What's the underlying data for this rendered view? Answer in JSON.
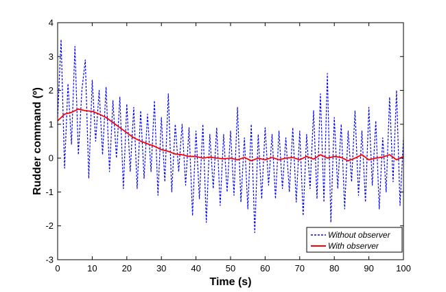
{
  "chart_data": {
    "type": "line",
    "title": "",
    "xlabel": "Time (s)",
    "ylabel": "Rudder command (º)",
    "xlim": [
      0,
      100
    ],
    "ylim": [
      -3,
      4
    ],
    "xticks": [
      "0",
      "10",
      "20",
      "30",
      "40",
      "50",
      "60",
      "70",
      "80",
      "90",
      "100"
    ],
    "yticks": [
      "4",
      "3",
      "2",
      "1",
      "0",
      "-1",
      "-2",
      "-3"
    ],
    "grid": false,
    "legend_position": "bottom-right",
    "series": [
      {
        "name": "Without observer",
        "color": "#0000ff",
        "style": "dashed",
        "x": [
          0,
          1,
          2,
          3,
          4,
          5,
          6,
          7,
          8,
          9,
          10,
          11,
          12,
          13,
          14,
          15,
          16,
          17,
          18,
          19,
          20,
          21,
          22,
          23,
          24,
          25,
          26,
          27,
          28,
          29,
          30,
          31,
          32,
          33,
          34,
          35,
          36,
          37,
          38,
          39,
          40,
          41,
          42,
          43,
          44,
          45,
          46,
          47,
          48,
          49,
          50,
          51,
          52,
          53,
          54,
          55,
          56,
          57,
          58,
          59,
          60,
          61,
          62,
          63,
          64,
          65,
          66,
          67,
          68,
          69,
          70,
          71,
          72,
          73,
          74,
          75,
          76,
          77,
          78,
          79,
          80,
          81,
          82,
          83,
          84,
          85,
          86,
          87,
          88,
          89,
          90,
          91,
          92,
          93,
          94,
          95,
          96,
          97,
          98,
          99,
          100
        ],
        "y": [
          1.2,
          3.5,
          -0.3,
          2.2,
          0.4,
          3.3,
          0.1,
          2.0,
          2.9,
          -0.6,
          2.3,
          0.5,
          2.0,
          0.1,
          2.1,
          -0.4,
          1.7,
          0.0,
          1.8,
          -0.9,
          1.6,
          -0.4,
          1.5,
          -0.9,
          1.4,
          -0.6,
          1.3,
          -0.4,
          1.7,
          -1.1,
          1.2,
          -0.7,
          1.9,
          -1.0,
          1.0,
          -0.4,
          1.0,
          -0.8,
          0.9,
          -1.7,
          0.8,
          -1.2,
          1.0,
          -1.9,
          0.7,
          -0.9,
          0.9,
          -1.4,
          0.7,
          -1.0,
          0.8,
          -1.1,
          1.5,
          -1.3,
          0.6,
          -1.5,
          1.0,
          -2.2,
          0.7,
          -1.2,
          0.9,
          -0.8,
          0.7,
          -1.2,
          0.8,
          -0.9,
          0.6,
          -1.0,
          0.9,
          -1.3,
          0.8,
          -1.7,
          0.7,
          -0.9,
          1.4,
          -1.2,
          1.9,
          -1.3,
          2.5,
          -1.9,
          1.2,
          -0.9,
          1.0,
          -1.5,
          0.8,
          -0.7,
          1.4,
          -1.1,
          0.8,
          -1.3,
          1.5,
          -0.8,
          1.1,
          -1.5,
          0.6,
          -1.0,
          1.8,
          -0.7,
          2.0,
          -1.4,
          0.6
        ]
      },
      {
        "name": "With observer",
        "color": "#ff0000",
        "style": "solid",
        "x": [
          0,
          2,
          4,
          6,
          8,
          10,
          12,
          14,
          16,
          18,
          20,
          22,
          24,
          26,
          28,
          30,
          32,
          34,
          36,
          38,
          40,
          42,
          44,
          46,
          48,
          50,
          52,
          54,
          56,
          58,
          60,
          62,
          64,
          66,
          68,
          70,
          72,
          74,
          76,
          78,
          80,
          82,
          84,
          86,
          88,
          90,
          92,
          94,
          96,
          98,
          100
        ],
        "y": [
          1.1,
          1.3,
          1.35,
          1.45,
          1.4,
          1.38,
          1.3,
          1.2,
          1.05,
          0.9,
          0.75,
          0.6,
          0.5,
          0.42,
          0.35,
          0.25,
          0.2,
          0.12,
          0.1,
          0.05,
          0.05,
          0.0,
          0.03,
          0.0,
          -0.02,
          0.0,
          -0.05,
          0.02,
          -0.08,
          0.0,
          -0.05,
          0.02,
          -0.05,
          0.0,
          0.02,
          -0.05,
          0.05,
          -0.03,
          0.1,
          0.0,
          0.05,
          0.02,
          -0.08,
          0.0,
          0.1,
          -0.05,
          0.0,
          0.03,
          0.1,
          -0.05,
          0.05
        ]
      }
    ]
  }
}
